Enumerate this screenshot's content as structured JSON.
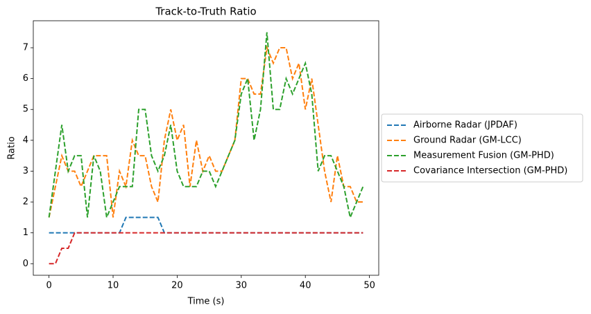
{
  "chart_data": {
    "type": "line",
    "title": "Track-to-Truth Ratio",
    "xlabel": "Time (s)",
    "ylabel": "Ratio",
    "x": [
      0,
      1,
      2,
      3,
      4,
      5,
      6,
      7,
      8,
      9,
      10,
      11,
      12,
      13,
      14,
      15,
      16,
      17,
      18,
      19,
      20,
      21,
      22,
      23,
      24,
      25,
      26,
      27,
      28,
      29,
      30,
      31,
      32,
      33,
      34,
      35,
      36,
      37,
      38,
      39,
      40,
      41,
      42,
      43,
      44,
      45,
      46,
      47,
      48,
      49
    ],
    "series": [
      {
        "name": "Airborne Radar (JPDAF)",
        "color": "#1f77b4",
        "values": [
          1,
          1,
          1,
          1,
          1,
          1,
          1,
          1,
          1,
          1,
          1,
          1,
          1.5,
          1.5,
          1.5,
          1.5,
          1.5,
          1.5,
          1,
          1,
          1,
          1,
          1,
          1,
          1,
          1,
          1,
          1,
          1,
          1,
          1,
          1,
          1,
          1,
          1,
          1,
          1,
          1,
          1,
          1,
          1,
          1,
          1,
          1,
          1,
          1,
          1,
          1,
          1,
          1
        ]
      },
      {
        "name": "Ground Radar (GM-LCC)",
        "color": "#ff7f0e",
        "values": [
          1.5,
          2.5,
          3.5,
          3,
          3,
          2.5,
          3,
          3.5,
          3.5,
          3.5,
          1.5,
          3,
          2.5,
          4,
          3.5,
          3.5,
          2.5,
          2,
          4,
          5,
          4,
          4.5,
          2.5,
          4,
          3,
          3.5,
          3,
          3,
          3.5,
          4,
          6,
          6,
          5.5,
          5.5,
          7,
          6.5,
          7,
          7,
          6,
          6.5,
          5,
          6,
          4.5,
          3,
          2,
          3.5,
          2.5,
          2.5,
          2,
          2
        ]
      },
      {
        "name": "Measurement Fusion (GM-PHD)",
        "color": "#2ca02c",
        "values": [
          1.5,
          3,
          4.5,
          3,
          3.5,
          3.5,
          1.5,
          3.5,
          3,
          1.5,
          2,
          2.5,
          2.5,
          2.5,
          5,
          5,
          3.5,
          3,
          3.5,
          4.5,
          3,
          2.5,
          2.5,
          2.5,
          3,
          3,
          2.5,
          3,
          3.5,
          4,
          5.5,
          6,
          4,
          5,
          7.5,
          5,
          5,
          6,
          5.5,
          6,
          6.5,
          5.5,
          3,
          3.5,
          3.5,
          3,
          2.5,
          1.5,
          2,
          2.5
        ]
      },
      {
        "name": "Covariance Intersection (GM-PHD)",
        "color": "#d62728",
        "values": [
          0,
          0,
          0.5,
          0.5,
          1,
          1,
          1,
          1,
          1,
          1,
          1,
          1,
          1,
          1,
          1,
          1,
          1,
          1,
          1,
          1,
          1,
          1,
          1,
          1,
          1,
          1,
          1,
          1,
          1,
          1,
          1,
          1,
          1,
          1,
          1,
          1,
          1,
          1,
          1,
          1,
          1,
          1,
          1,
          1,
          1,
          1,
          1,
          1,
          1,
          1
        ]
      }
    ],
    "xlim": [
      -2.45,
      51.45
    ],
    "ylim": [
      -0.375,
      7.875
    ],
    "xticks": [
      0,
      10,
      20,
      30,
      40,
      50
    ],
    "yticks": [
      0,
      1,
      2,
      3,
      4,
      5,
      6,
      7
    ],
    "legend": "outside right",
    "grid": false
  }
}
